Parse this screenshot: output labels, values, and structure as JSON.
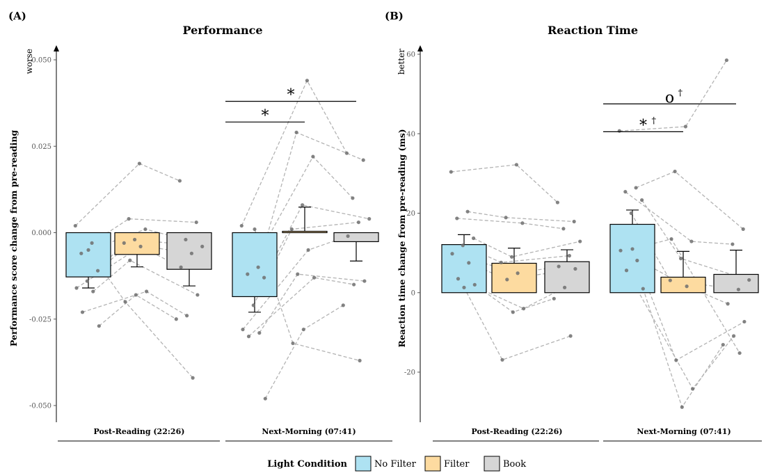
{
  "colors": {
    "No Filter": "#aee2f2",
    "Filter": "#fddba0",
    "Book": "#d6d6d6"
  },
  "legend": {
    "title": "Light Condition",
    "items": [
      "No Filter",
      "Filter",
      "Book"
    ]
  },
  "chart_data": [
    {
      "type": "bar",
      "panel": "(A)",
      "title": "Performance",
      "ylabel": "Performance score change from pre-reading",
      "direction_label": "worse",
      "ylim": [
        -0.055,
        0.055
      ],
      "yticks": [
        -0.05,
        -0.025,
        0,
        0.025,
        0.05
      ],
      "ytick_labels": [
        "-0.050",
        "-0.025",
        "0.000",
        "0.025",
        "0.050"
      ],
      "groups": [
        "Post-Reading (22:26)",
        "Next-Morning (07:41)"
      ],
      "series": [
        {
          "name": "No Filter",
          "values": [
            -0.0128,
            -0.0185
          ],
          "errors": [
            0.0032,
            0.0045
          ]
        },
        {
          "name": "Filter",
          "values": [
            -0.0063,
            0.0004
          ],
          "errors": [
            0.0036,
            0.007
          ]
        },
        {
          "name": "Book",
          "values": [
            -0.0106,
            -0.0026
          ],
          "errors": [
            0.0048,
            0.0056
          ]
        }
      ],
      "points": {
        "No Filter": [
          [
            0.002,
            -0.003,
            -0.006,
            -0.011,
            -0.014,
            -0.016,
            -0.017,
            -0.023,
            -0.027,
            -0.005
          ],
          [
            0.002,
            -0.01,
            -0.012,
            -0.013,
            -0.021,
            -0.028,
            -0.029,
            -0.03,
            -0.048,
            0.001
          ]
        ],
        "Filter": [
          [
            0.02,
            0.004,
            0.001,
            -0.002,
            -0.003,
            -0.004,
            -0.008,
            -0.017,
            -0.018,
            -0.02
          ],
          [
            0.044,
            0.029,
            0.022,
            0.008,
            0.001,
            -0.005,
            -0.012,
            -0.013,
            -0.028,
            -0.032
          ]
        ],
        "Book": [
          [
            0.015,
            0.003,
            -0.002,
            -0.004,
            -0.006,
            -0.01,
            -0.018,
            -0.024,
            -0.025,
            -0.042
          ],
          [
            0.023,
            0.021,
            0.01,
            0.004,
            0.003,
            -0.001,
            -0.014,
            -0.015,
            -0.021,
            -0.037
          ]
        ]
      },
      "annotations": [
        {
          "text": "*",
          "group": "Next-Morning (07:41)",
          "from": "No Filter",
          "to": "Filter",
          "y": 0.032
        },
        {
          "text": "*",
          "group": "Next-Morning (07:41)",
          "from": "No Filter",
          "to": "Book",
          "y": 0.038
        }
      ]
    },
    {
      "type": "bar",
      "panel": "(B)",
      "title": "Reaction Time",
      "ylabel": "Reaction time change from pre-reading (ms)",
      "direction_label": "better",
      "ylim": [
        -29,
        62
      ],
      "yticks": [
        -20,
        0,
        20,
        40,
        60
      ],
      "ytick_labels": [
        "-20",
        "0",
        "20",
        "40",
        "60"
      ],
      "groups": [
        "Post-Reading (22:26)",
        "Next-Morning (07:41)"
      ],
      "series": [
        {
          "name": "No Filter",
          "values": [
            12.1,
            17.2
          ],
          "errors": [
            2.5,
            3.6
          ]
        },
        {
          "name": "Filter",
          "values": [
            7.4,
            3.9
          ],
          "errors": [
            3.8,
            6.5
          ]
        },
        {
          "name": "Book",
          "values": [
            7.8,
            4.6
          ],
          "errors": [
            3.0,
            6.1
          ]
        }
      ],
      "points": {
        "No Filter": [
          [
            30.4,
            20.4,
            18.7,
            13.7,
            11.9,
            9.8,
            7.5,
            3.5,
            2.0,
            1.3
          ],
          [
            40.7,
            26.4,
            25.4,
            23.3,
            20.0,
            10.6,
            8.1,
            5.6,
            1.0,
            11.0
          ]
        ],
        "Filter": [
          [
            32.2,
            18.9,
            17.5,
            9.0,
            7.6,
            4.9,
            3.3,
            -4.0,
            -4.9,
            -16.9
          ],
          [
            41.8,
            30.5,
            12.9,
            8.6,
            3.1,
            1.6,
            -17.0,
            -24.2,
            -28.8,
            13.5
          ]
        ],
        "Book": [
          [
            22.7,
            17.9,
            16.1,
            12.9,
            9.3,
            6.6,
            6.0,
            1.3,
            -1.5,
            -10.9
          ],
          [
            58.5,
            16.0,
            12.2,
            3.2,
            0.8,
            -2.8,
            -7.3,
            -10.9,
            -13.1,
            -15.2
          ]
        ]
      },
      "annotations": [
        {
          "text": "*",
          "dagger": "†",
          "group": "Next-Morning (07:41)",
          "from": "No Filter",
          "to": "Filter",
          "y": 40.5
        },
        {
          "text": "o",
          "dagger": "†",
          "group": "Next-Morning (07:41)",
          "from": "No Filter",
          "to": "Book",
          "y": 47.5
        }
      ]
    }
  ]
}
